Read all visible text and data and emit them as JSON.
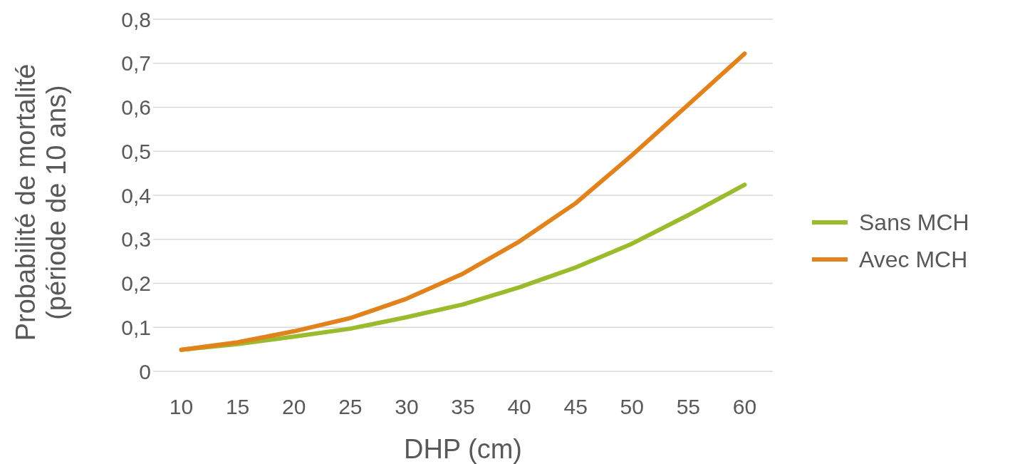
{
  "chart_data": {
    "type": "line",
    "xlabel": "DHP (cm)",
    "ylabel": "Probabilité de mortalité\n(période de 10 ans)",
    "categories": [
      "10",
      "15",
      "20",
      "25",
      "30",
      "35",
      "40",
      "45",
      "50",
      "55",
      "60"
    ],
    "series": [
      {
        "name": "Sans MCH",
        "color": "#9bbb2f",
        "values": [
          0.049,
          0.062,
          0.079,
          0.097,
          0.123,
          0.152,
          0.191,
          0.236,
          0.29,
          0.355,
          0.424
        ]
      },
      {
        "name": "Avec MCH",
        "color": "#e2821c",
        "values": [
          0.049,
          0.066,
          0.091,
          0.121,
          0.165,
          0.222,
          0.295,
          0.382,
          0.491,
          0.606,
          0.722
        ]
      }
    ],
    "ylim": [
      0,
      0.8
    ],
    "yticks": [
      0,
      {
        "value": 0.1,
        "label": "0,1"
      },
      {
        "value": 0.2,
        "label": "0,2"
      },
      {
        "value": 0.3,
        "label": "0,3"
      },
      {
        "value": 0.4,
        "label": "0,4"
      },
      {
        "value": 0.5,
        "label": "0,5"
      },
      {
        "value": 0.6,
        "label": "0,6"
      },
      {
        "value": 0.7,
        "label": "0,7"
      },
      {
        "value": 0.8,
        "label": "0,8"
      }
    ],
    "grid": "y",
    "legend": "right",
    "marker": "none",
    "line_style": "solid"
  }
}
